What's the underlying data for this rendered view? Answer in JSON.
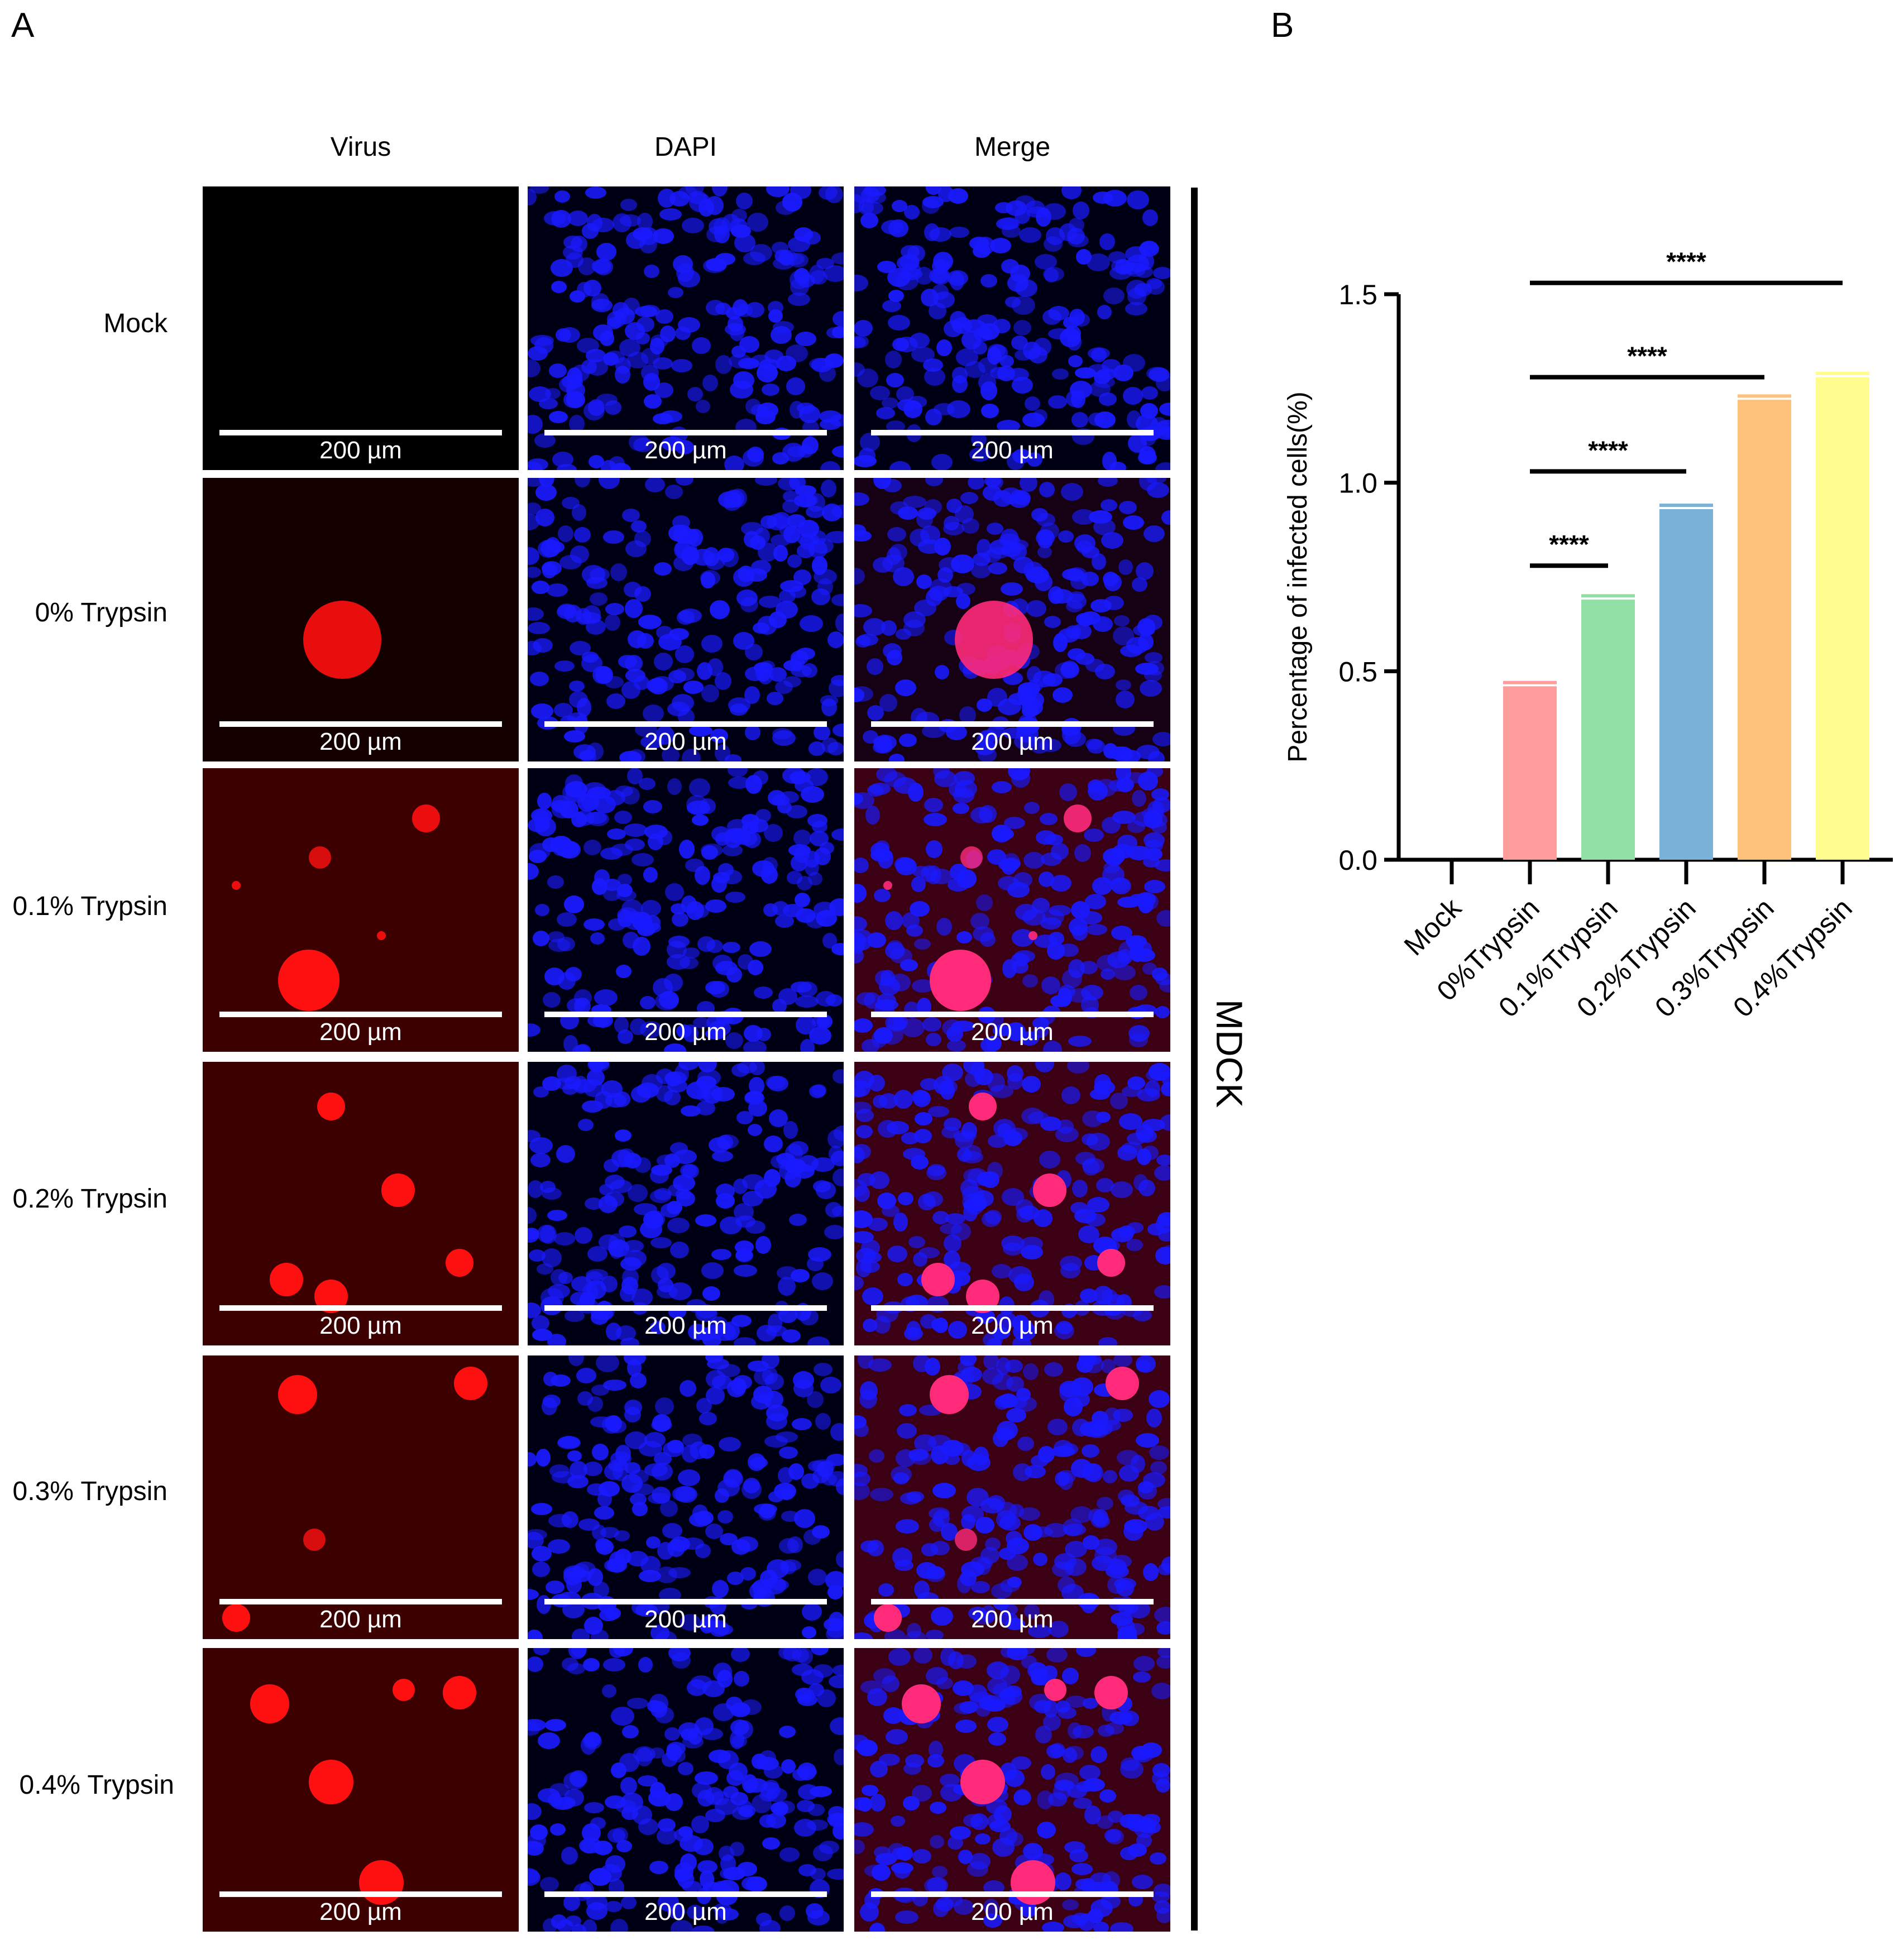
{
  "panels": {
    "a": "A",
    "b": "B"
  },
  "columns": [
    "Virus",
    "DAPI",
    "Merge"
  ],
  "rows": [
    "Mock",
    "0% Trypsin",
    "0.1% Trypsin",
    "0.2% Trypsin",
    "0.3% Trypsin",
    "0.4% Trypsin"
  ],
  "scale_bar_label": "200 µm",
  "cell_line": "MDCK",
  "colors": {
    "virus": "#ff1010",
    "dapi": "#1a1aff",
    "background": "#000000"
  },
  "chart_data": {
    "type": "bar",
    "categories": [
      "Mock",
      "0%Trypsin",
      "0.1%Trypsin",
      "0.2%Trypsin",
      "0.3%Trypsin",
      "0.4%Trypsin"
    ],
    "values": [
      0,
      0.46,
      0.69,
      0.93,
      1.22,
      1.28
    ],
    "errors": [
      0,
      0.01,
      0.01,
      0.01,
      0.01,
      0.01
    ],
    "colors": [
      "#ffffff",
      "#ff9d9d",
      "#93e0a6",
      "#7ab1d9",
      "#ffc27d",
      "#fffd8e"
    ],
    "ylabel": "Percentage of infected cells(%)",
    "xlabel": "",
    "ylim": [
      0,
      1.5
    ],
    "yticks": [
      "0.0",
      "0.5",
      "1.0",
      "1.5"
    ],
    "significance": [
      {
        "from": "0%Trypsin",
        "to": "0.1%Trypsin",
        "label": "****"
      },
      {
        "from": "0%Trypsin",
        "to": "0.2%Trypsin",
        "label": "****"
      },
      {
        "from": "0%Trypsin",
        "to": "0.3%Trypsin",
        "label": "****"
      },
      {
        "from": "0%Trypsin",
        "to": "0.4%Trypsin",
        "label": "****"
      }
    ]
  }
}
